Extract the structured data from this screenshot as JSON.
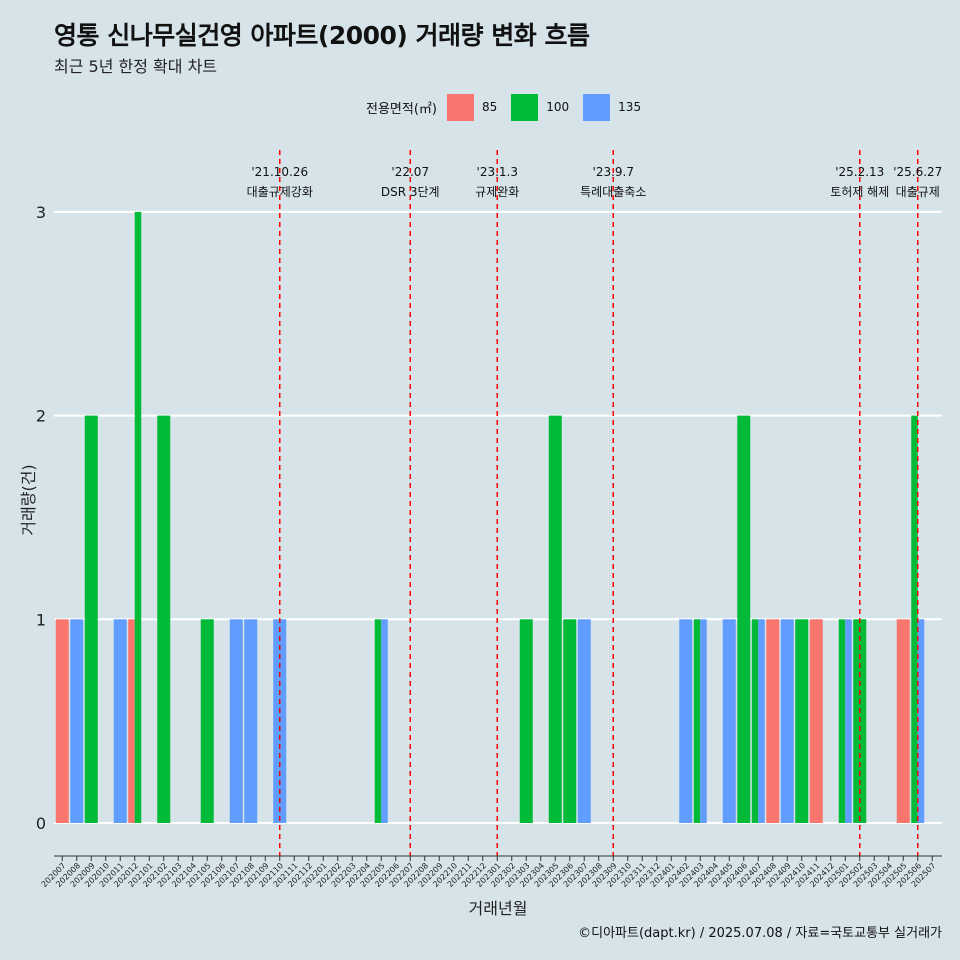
{
  "header": {
    "title": "영통 신나무실건영 아파트(2000) 거래량 변화 흐름",
    "subtitle": "최근 5년 한정 확대 차트"
  },
  "legend": {
    "title": "전용면적(㎡)",
    "items": [
      {
        "label": "85",
        "color": "#f8766d"
      },
      {
        "label": "100",
        "color": "#00ba38"
      },
      {
        "label": "135",
        "color": "#619cff"
      }
    ]
  },
  "caption": "©디아파트(dapt.kr) / 2025.07.08 / 자료=국토교통부 실거래가",
  "chart_data": {
    "type": "bar",
    "xlabel": "거래년월",
    "ylabel": "거래량(건)",
    "ylim": [
      0,
      3
    ],
    "y_ticks": [
      "0",
      "1",
      "2",
      "3"
    ],
    "grid": true,
    "legend_position": "top",
    "categories": [
      "202007",
      "202008",
      "202009",
      "202010",
      "202011",
      "202012",
      "202101",
      "202102",
      "202103",
      "202104",
      "202105",
      "202106",
      "202107",
      "202108",
      "202109",
      "202110",
      "202111",
      "202112",
      "202201",
      "202202",
      "202203",
      "202204",
      "202205",
      "202206",
      "202207",
      "202208",
      "202209",
      "202210",
      "202211",
      "202212",
      "202301",
      "202302",
      "202303",
      "202304",
      "202305",
      "202306",
      "202307",
      "202308",
      "202309",
      "202310",
      "202311",
      "202312",
      "202401",
      "202402",
      "202403",
      "202404",
      "202405",
      "202406",
      "202407",
      "202408",
      "202409",
      "202410",
      "202411",
      "202412",
      "202501",
      "202502",
      "202503",
      "202504",
      "202505",
      "202506",
      "202507"
    ],
    "series": [
      {
        "name": "85",
        "color": "#f8766d",
        "values": [
          1,
          0,
          0,
          0,
          0,
          1,
          0,
          0,
          0,
          0,
          0,
          0,
          0,
          0,
          0,
          0,
          0,
          0,
          0,
          0,
          0,
          0,
          0,
          0,
          0,
          0,
          0,
          0,
          0,
          0,
          0,
          0,
          0,
          0,
          0,
          0,
          0,
          0,
          0,
          0,
          0,
          0,
          0,
          0,
          0,
          0,
          0,
          0,
          0,
          1,
          0,
          0,
          1,
          0,
          0,
          0,
          0,
          0,
          1,
          0,
          0
        ]
      },
      {
        "name": "100",
        "color": "#00ba38",
        "values": [
          0,
          0,
          2,
          0,
          0,
          3,
          0,
          2,
          0,
          0,
          1,
          0,
          0,
          0,
          0,
          0,
          0,
          0,
          0,
          0,
          0,
          0,
          1,
          0,
          0,
          0,
          0,
          0,
          0,
          0,
          0,
          0,
          1,
          0,
          2,
          1,
          0,
          0,
          0,
          0,
          0,
          0,
          0,
          0,
          1,
          0,
          0,
          2,
          1,
          0,
          0,
          1,
          0,
          0,
          1,
          1,
          0,
          0,
          0,
          2,
          0
        ]
      },
      {
        "name": "135",
        "color": "#619cff",
        "values": [
          0,
          1,
          0,
          0,
          1,
          0,
          0,
          0,
          0,
          0,
          0,
          0,
          1,
          1,
          0,
          1,
          0,
          0,
          0,
          0,
          0,
          0,
          1,
          0,
          0,
          0,
          0,
          0,
          0,
          0,
          0,
          0,
          0,
          0,
          0,
          0,
          1,
          0,
          0,
          0,
          0,
          0,
          0,
          1,
          1,
          0,
          1,
          0,
          1,
          0,
          1,
          0,
          0,
          0,
          1,
          0,
          0,
          0,
          0,
          1,
          0
        ]
      }
    ],
    "annotations": [
      {
        "x": "202110",
        "date": "'21.10.26",
        "label": "대출규제강화"
      },
      {
        "x": "202207",
        "date": "'22.07",
        "label": "DSR 3단계"
      },
      {
        "x": "202301",
        "date": "'23.1.3",
        "label": "규제완화"
      },
      {
        "x": "202309",
        "date": "'23.9.7",
        "label": "특례대출축소"
      },
      {
        "x": "202502",
        "date": "'25.2.13",
        "label": "토허제 해제"
      },
      {
        "x": "202506",
        "date": "'25.6.27",
        "label": "대출규제"
      }
    ],
    "annotation_color": "#ff0000"
  }
}
